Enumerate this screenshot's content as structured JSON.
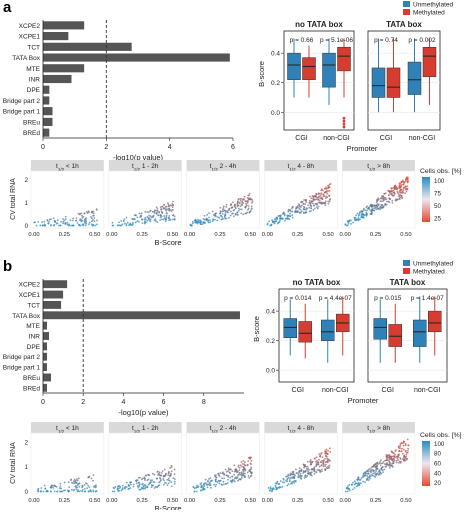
{
  "panels": [
    {
      "label": "a",
      "bar": {
        "categories": [
          "XCPE2",
          "XCPE1",
          "TCT",
          "TATA Box",
          "MTE",
          "INR",
          "DPE",
          "Bridge part 2",
          "Bridge part 1",
          "BREu",
          "BREd"
        ],
        "values": [
          1.3,
          0.8,
          2.8,
          5.9,
          1.3,
          0.9,
          0.2,
          0.2,
          0.3,
          0.3,
          0.2
        ],
        "xlim": [
          0,
          6
        ],
        "xticks": [
          "0",
          "2",
          "4",
          "6"
        ],
        "threshold": 2,
        "xlabel": "-log10(p value)"
      },
      "box": {
        "ylabel": "B-score",
        "xlabel": "Promoter",
        "legend": [
          "Unmethylated",
          "Methylated"
        ],
        "subpanels": [
          {
            "title": "no TATA box",
            "pvalues": [
              "p = 0.66",
              "p = 5.1e-06"
            ],
            "categories": [
              "CGI",
              "non-CGI"
            ],
            "boxes": [
              [
                0.1,
                0.22,
                0.32,
                0.4,
                0.5
              ],
              [
                0.1,
                0.22,
                0.31,
                0.37,
                0.45
              ],
              [
                0.05,
                0.17,
                0.32,
                0.4,
                0.5
              ],
              [
                0.1,
                0.28,
                0.38,
                0.44,
                0.5
              ]
            ],
            "outliers": [
              [],
              [],
              [],
              [
                -0.04,
                -0.06,
                -0.08,
                -0.1
              ]
            ]
          },
          {
            "title": "TATA box",
            "pvalues": [
              "p = 0.74",
              "p = 0.002"
            ],
            "categories": [
              "CGI",
              "non-CGI"
            ],
            "boxes": [
              [
                0.0,
                0.1,
                0.18,
                0.3,
                0.5
              ],
              [
                0.0,
                0.1,
                0.17,
                0.3,
                0.5
              ],
              [
                0.0,
                0.12,
                0.22,
                0.34,
                0.5
              ],
              [
                0.05,
                0.24,
                0.38,
                0.44,
                0.5
              ]
            ],
            "outliers": [
              [],
              [],
              [],
              []
            ]
          }
        ],
        "ylim": [
          -0.12,
          0.55
        ],
        "yticks": [
          0.0,
          0.2,
          0.4
        ],
        "colors": {
          "unmethylated": "#2f81b7",
          "methylated": "#d63c2f"
        }
      },
      "scatter": {
        "facets": [
          "t1/2 < 1h",
          "t1/2 1 - 2h",
          "t1/2 2 - 4h",
          "t1/2 4 - 8h",
          "t1/2 > 8h"
        ],
        "ylabel": "CV total RNA",
        "xlabel": "B-Score",
        "xticks": [
          "0.00",
          "0.25",
          "0.50"
        ],
        "yticks": [
          "0",
          "1",
          "2"
        ],
        "legend_title": "Cells obs. [%]",
        "legend_ticks": [
          "100",
          "75",
          "50",
          "25"
        ],
        "color_low": "#e34a33",
        "color_high": "#2b8cbe"
      }
    },
    {
      "label": "b",
      "bar": {
        "categories": [
          "XCPE2",
          "XCPE1",
          "TCT",
          "TATA Box",
          "MTE",
          "INR",
          "DPE",
          "Bridge part 2",
          "Bridge part 1",
          "BREu",
          "BREd"
        ],
        "values": [
          1.2,
          1.0,
          0.9,
          9.8,
          0.2,
          0.3,
          0.2,
          0.2,
          0.2,
          0.4,
          0.2
        ],
        "xlim": [
          0,
          10
        ],
        "xticks": [
          "0",
          "2",
          "4",
          "6",
          "8"
        ],
        "threshold": 2,
        "xlabel": "-log10(p value)"
      },
      "box": {
        "ylabel": "B-score",
        "xlabel": "Promoter",
        "legend": [
          "Unmethylated",
          "Methylated"
        ],
        "subpanels": [
          {
            "title": "no TATA box",
            "pvalues": [
              "p = 0.014",
              "p = 4.4e-07"
            ],
            "categories": [
              "CGI",
              "non-CGI"
            ],
            "boxes": [
              [
                0.1,
                0.22,
                0.29,
                0.35,
                0.48
              ],
              [
                0.08,
                0.19,
                0.25,
                0.33,
                0.45
              ],
              [
                0.05,
                0.2,
                0.26,
                0.34,
                0.48
              ],
              [
                0.1,
                0.26,
                0.32,
                0.38,
                0.5
              ]
            ],
            "outliers": [
              [],
              [],
              [],
              []
            ]
          },
          {
            "title": "TATA box",
            "pvalues": [
              "p = 0.015",
              "p = 1.4e-07"
            ],
            "categories": [
              "CGI",
              "non-CGI"
            ],
            "boxes": [
              [
                0.05,
                0.21,
                0.29,
                0.35,
                0.48
              ],
              [
                0.05,
                0.16,
                0.23,
                0.31,
                0.45
              ],
              [
                0.05,
                0.16,
                0.26,
                0.34,
                0.5
              ],
              [
                0.1,
                0.26,
                0.32,
                0.4,
                0.5
              ]
            ],
            "outliers": [
              [],
              [],
              [],
              []
            ]
          }
        ],
        "ylim": [
          -0.08,
          0.55
        ],
        "yticks": [
          0.0,
          0.2,
          0.4
        ],
        "colors": {
          "unmethylated": "#2f81b7",
          "methylated": "#d63c2f"
        }
      },
      "scatter": {
        "facets": [
          "t1/2 < 1h",
          "t1/2 1 - 2h",
          "t1/2 2 - 4h",
          "t1/2 4 - 8h",
          "t1/2 > 8h"
        ],
        "ylabel": "CV total RNA",
        "xlabel": "B-Score",
        "xticks": [
          "0.00",
          "0.25",
          "0.50"
        ],
        "yticks": [
          "0",
          "1",
          "2"
        ],
        "legend_title": "Cells obs. [%]",
        "legend_ticks": [
          "100",
          "80",
          "60",
          "40",
          "20"
        ],
        "color_low": "#e34a33",
        "color_high": "#2b8cbe"
      }
    }
  ],
  "chart_data": [
    {
      "type": "bar",
      "title": "",
      "xlabel": "-log10(p value)",
      "ylabel": "",
      "categories": [
        "XCPE2",
        "XCPE1",
        "TCT",
        "TATA Box",
        "MTE",
        "INR",
        "DPE",
        "Bridge part 2",
        "Bridge part 1",
        "BREu",
        "BREd"
      ],
      "values": [
        1.3,
        0.8,
        2.8,
        5.9,
        1.3,
        0.9,
        0.2,
        0.2,
        0.3,
        0.3,
        0.2
      ],
      "xlim": [
        0,
        6
      ]
    },
    {
      "type": "box",
      "title": "no TATA box",
      "xlabel": "Promoter",
      "ylabel": "B-score",
      "categories": [
        "CGI",
        "non-CGI"
      ],
      "series": [
        {
          "name": "Unmethylated"
        },
        {
          "name": "Methylated"
        }
      ],
      "annotations": [
        "p = 0.66",
        "p = 5.1e-06"
      ]
    },
    {
      "type": "box",
      "title": "TATA box",
      "xlabel": "Promoter",
      "ylabel": "B-score",
      "categories": [
        "CGI",
        "non-CGI"
      ],
      "series": [
        {
          "name": "Unmethylated"
        },
        {
          "name": "Methylated"
        }
      ],
      "annotations": [
        "p = 0.74",
        "p = 0.002"
      ]
    },
    {
      "type": "scatter",
      "xlabel": "B-Score",
      "ylabel": "CV total RNA",
      "legend": "Cells obs. [%]",
      "xlim": [
        0,
        0.5
      ],
      "ylim": [
        0,
        2.2
      ]
    },
    {
      "type": "bar",
      "title": "",
      "xlabel": "-log10(p value)",
      "ylabel": "",
      "categories": [
        "XCPE2",
        "XCPE1",
        "TCT",
        "TATA Box",
        "MTE",
        "INR",
        "DPE",
        "Bridge part 2",
        "Bridge part 1",
        "BREu",
        "BREd"
      ],
      "values": [
        1.2,
        1.0,
        0.9,
        9.8,
        0.2,
        0.3,
        0.2,
        0.2,
        0.2,
        0.4,
        0.2
      ],
      "xlim": [
        0,
        10
      ]
    },
    {
      "type": "box",
      "title": "no TATA box",
      "xlabel": "Promoter",
      "ylabel": "B-score",
      "categories": [
        "CGI",
        "non-CGI"
      ],
      "series": [
        {
          "name": "Unmethylated"
        },
        {
          "name": "Methylated"
        }
      ],
      "annotations": [
        "p = 0.014",
        "p = 4.4e-07"
      ]
    },
    {
      "type": "box",
      "title": "TATA box",
      "xlabel": "Promoter",
      "ylabel": "B-score",
      "categories": [
        "CGI",
        "non-CGI"
      ],
      "series": [
        {
          "name": "Unmethylated"
        },
        {
          "name": "Methylated"
        }
      ],
      "annotations": [
        "p = 0.015",
        "p = 1.4e-07"
      ]
    },
    {
      "type": "scatter",
      "xlabel": "B-Score",
      "ylabel": "CV total RNA",
      "legend": "Cells obs. [%]",
      "xlim": [
        0,
        0.5
      ],
      "ylim": [
        0,
        2.2
      ]
    }
  ]
}
